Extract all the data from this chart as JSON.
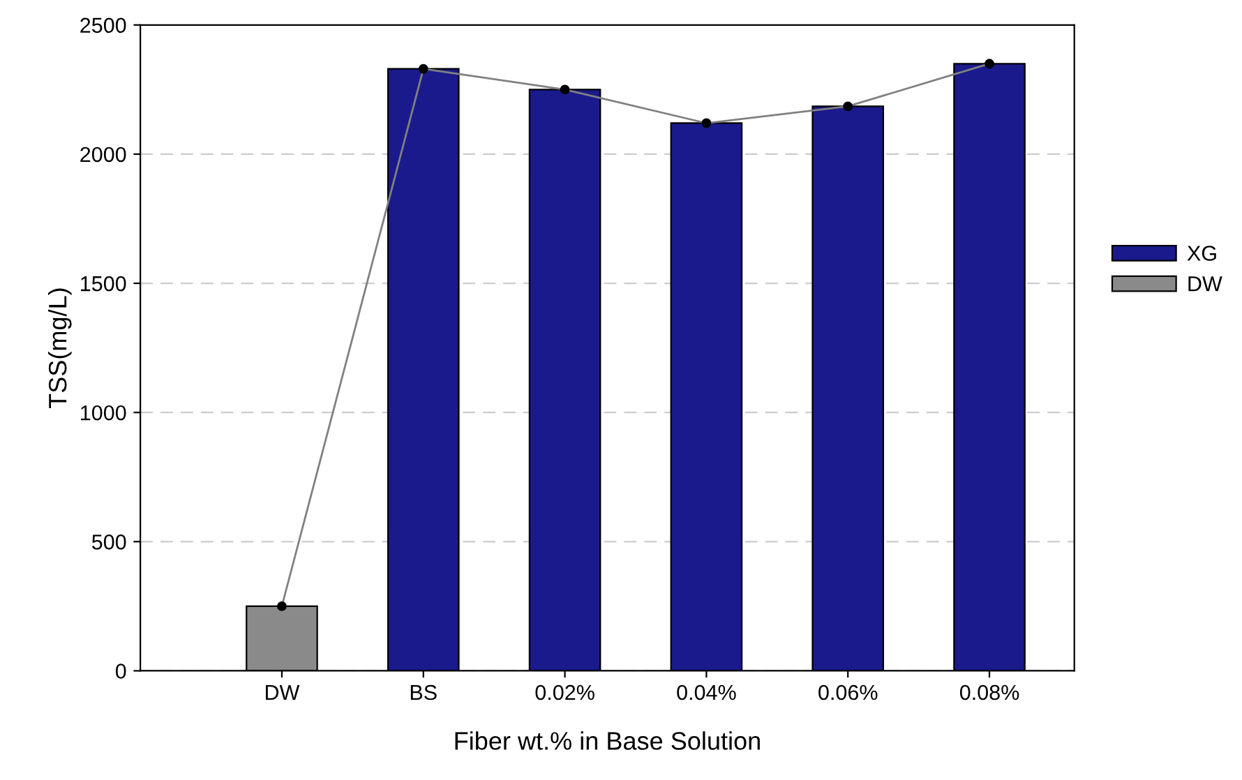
{
  "chart_data": {
    "type": "bar",
    "xlabel": "Fiber wt.% in Base Solution",
    "ylabel": "TSS(mg/L)",
    "categories": [
      "DW",
      "BS",
      "0.02%",
      "0.04%",
      "0.06%",
      "0.08%"
    ],
    "series": [
      {
        "name": "XG",
        "color": "#1a1a8c",
        "values": [
          null,
          2330,
          2250,
          2120,
          2185,
          2350
        ]
      },
      {
        "name": "DW",
        "color": "#8a8a8a",
        "values": [
          250,
          null,
          null,
          null,
          null,
          null
        ]
      },
      {
        "type": "line",
        "color": "#808080",
        "marker": "circle",
        "values": [
          250,
          2330,
          2250,
          2120,
          2185,
          2350
        ]
      }
    ],
    "ylim": [
      0,
      2500
    ],
    "yticks": [
      0,
      500,
      1000,
      1500,
      2000,
      2500
    ],
    "grid": "y",
    "legend": "right"
  }
}
